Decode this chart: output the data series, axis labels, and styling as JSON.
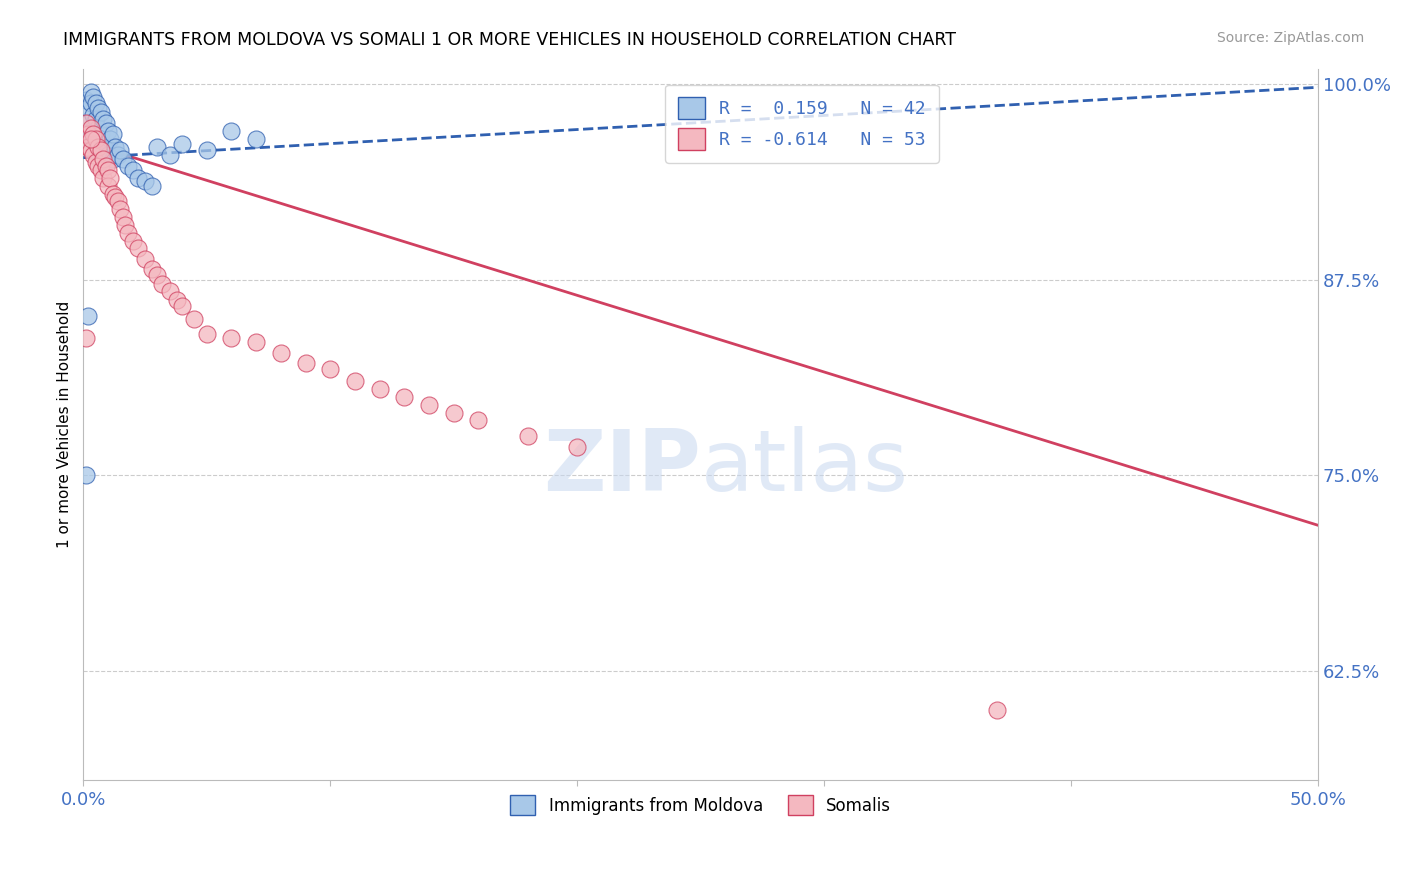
{
  "title": "IMMIGRANTS FROM MOLDOVA VS SOMALI 1 OR MORE VEHICLES IN HOUSEHOLD CORRELATION CHART",
  "source": "Source: ZipAtlas.com",
  "ylabel": "1 or more Vehicles in Household",
  "xmin": 0.0,
  "xmax": 0.5,
  "ymin": 0.555,
  "ymax": 1.01,
  "yticks": [
    1.0,
    0.875,
    0.75,
    0.625
  ],
  "ytick_labels": [
    "100.0%",
    "87.5%",
    "75.0%",
    "62.5%"
  ],
  "xticks": [
    0.0,
    0.1,
    0.2,
    0.3,
    0.4,
    0.5
  ],
  "xtick_labels": [
    "0.0%",
    "",
    "",
    "",
    "",
    "50.0%"
  ],
  "legend_r1": "R =  0.159   N = 42",
  "legend_r2": "R = -0.614   N = 53",
  "legend_label1": "Immigrants from Moldova",
  "legend_label2": "Somalis",
  "blue_color": "#a8c8e8",
  "pink_color": "#f4b8c0",
  "blue_line_color": "#3060b0",
  "pink_line_color": "#d04060",
  "watermark": "ZIPatlas",
  "moldova_trend_x": [
    0.0,
    0.5
  ],
  "moldova_trend_y": [
    0.953,
    0.998
  ],
  "somali_trend_x": [
    0.0,
    0.5
  ],
  "somali_trend_y": [
    0.963,
    0.718
  ],
  "moldova_x": [
    0.001,
    0.002,
    0.002,
    0.003,
    0.003,
    0.003,
    0.004,
    0.004,
    0.004,
    0.005,
    0.005,
    0.005,
    0.006,
    0.006,
    0.007,
    0.007,
    0.008,
    0.008,
    0.009,
    0.009,
    0.01,
    0.01,
    0.011,
    0.012,
    0.012,
    0.013,
    0.014,
    0.015,
    0.016,
    0.018,
    0.02,
    0.022,
    0.025,
    0.028,
    0.03,
    0.035,
    0.04,
    0.05,
    0.06,
    0.07,
    0.001,
    0.002
  ],
  "moldova_y": [
    0.99,
    0.985,
    0.975,
    0.995,
    0.988,
    0.97,
    0.992,
    0.98,
    0.965,
    0.988,
    0.978,
    0.962,
    0.985,
    0.972,
    0.982,
    0.968,
    0.978,
    0.96,
    0.975,
    0.958,
    0.97,
    0.955,
    0.965,
    0.968,
    0.952,
    0.96,
    0.955,
    0.958,
    0.952,
    0.948,
    0.945,
    0.94,
    0.938,
    0.935,
    0.96,
    0.955,
    0.962,
    0.958,
    0.97,
    0.965,
    0.75,
    0.852
  ],
  "somali_x": [
    0.001,
    0.002,
    0.002,
    0.003,
    0.003,
    0.004,
    0.004,
    0.005,
    0.005,
    0.006,
    0.006,
    0.007,
    0.007,
    0.008,
    0.008,
    0.009,
    0.01,
    0.01,
    0.011,
    0.012,
    0.013,
    0.014,
    0.015,
    0.016,
    0.017,
    0.018,
    0.02,
    0.022,
    0.025,
    0.028,
    0.03,
    0.032,
    0.035,
    0.038,
    0.04,
    0.045,
    0.05,
    0.06,
    0.07,
    0.08,
    0.09,
    0.1,
    0.11,
    0.12,
    0.13,
    0.14,
    0.15,
    0.16,
    0.18,
    0.2,
    0.37,
    0.001,
    0.003
  ],
  "somali_y": [
    0.975,
    0.968,
    0.96,
    0.972,
    0.958,
    0.968,
    0.955,
    0.965,
    0.95,
    0.96,
    0.948,
    0.958,
    0.945,
    0.952,
    0.94,
    0.948,
    0.945,
    0.935,
    0.94,
    0.93,
    0.928,
    0.925,
    0.92,
    0.915,
    0.91,
    0.905,
    0.9,
    0.895,
    0.888,
    0.882,
    0.878,
    0.872,
    0.868,
    0.862,
    0.858,
    0.85,
    0.84,
    0.838,
    0.835,
    0.828,
    0.822,
    0.818,
    0.81,
    0.805,
    0.8,
    0.795,
    0.79,
    0.785,
    0.775,
    0.768,
    0.6,
    0.838,
    0.965
  ]
}
